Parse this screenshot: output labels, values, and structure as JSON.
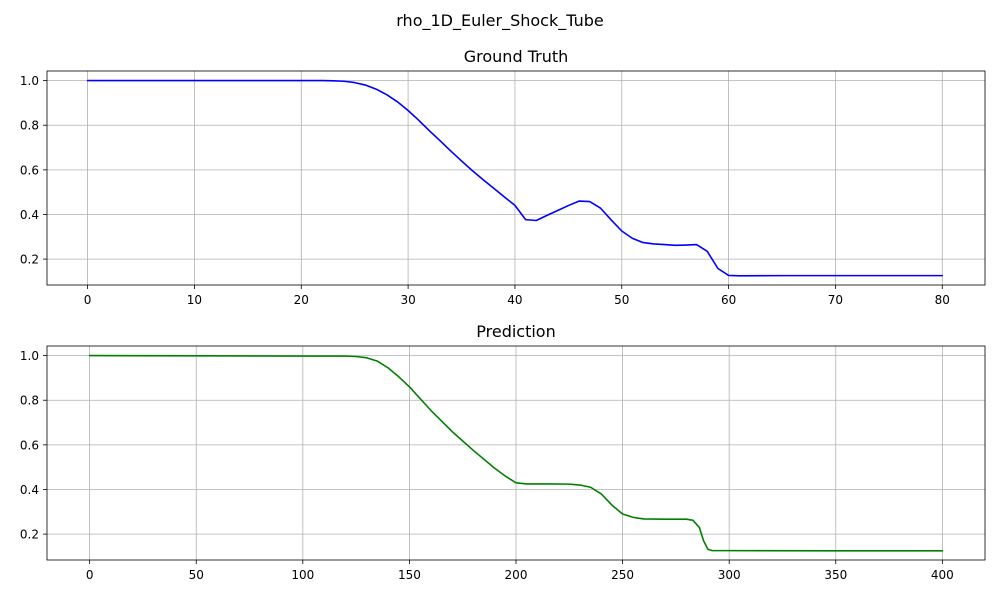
{
  "figure": {
    "title": "rho_1D_Euler_Shock_Tube"
  },
  "chart_data": [
    {
      "type": "line",
      "title": "Ground Truth",
      "xlabel": "",
      "ylabel": "",
      "xlim": [
        -3.8,
        84
      ],
      "ylim": [
        0.084,
        1.043
      ],
      "xticks": [
        0,
        10,
        20,
        30,
        40,
        50,
        60,
        70,
        80
      ],
      "yticks": [
        0.2,
        0.4,
        0.6,
        0.8,
        1.0
      ],
      "ytick_labels": [
        "0.2",
        "0.4",
        "0.6",
        "0.8",
        "1.0"
      ],
      "grid": true,
      "series": [
        {
          "color": "#0000ff",
          "x": [
            0,
            5,
            10,
            15,
            20,
            22,
            23,
            24,
            25,
            26,
            27,
            28,
            29,
            30,
            31,
            32,
            33,
            34,
            35,
            36,
            37,
            38,
            39,
            40,
            41,
            42,
            43,
            44,
            45,
            46,
            47,
            48,
            49,
            50,
            51,
            52,
            53,
            54,
            55,
            56,
            57,
            58,
            59,
            60,
            61,
            65,
            70,
            80
          ],
          "y": [
            1.0,
            1.0,
            1.0,
            1.0,
            1.0,
            1.0,
            0.999,
            0.997,
            0.991,
            0.98,
            0.962,
            0.937,
            0.905,
            0.866,
            0.822,
            0.775,
            0.73,
            0.684,
            0.64,
            0.597,
            0.557,
            0.518,
            0.479,
            0.441,
            0.377,
            0.373,
            0.396,
            0.418,
            0.44,
            0.46,
            0.458,
            0.429,
            0.376,
            0.326,
            0.293,
            0.274,
            0.268,
            0.265,
            0.262,
            0.263,
            0.265,
            0.235,
            0.158,
            0.127,
            0.125,
            0.126,
            0.126,
            0.126
          ]
        }
      ]
    },
    {
      "type": "line",
      "title": "Prediction",
      "xlabel": "",
      "ylabel": "",
      "xlim": [
        -20,
        420
      ],
      "ylim": [
        0.084,
        1.043
      ],
      "xticks": [
        0,
        50,
        100,
        150,
        200,
        250,
        300,
        350,
        400
      ],
      "yticks": [
        0.2,
        0.4,
        0.6,
        0.8,
        1.0
      ],
      "ytick_labels": [
        "0.2",
        "0.4",
        "0.6",
        "0.8",
        "1.0"
      ],
      "grid": true,
      "series": [
        {
          "color": "#008000",
          "x": [
            0,
            50,
            100,
            120,
            125,
            130,
            135,
            140,
            145,
            150,
            160,
            170,
            180,
            190,
            195,
            200,
            205,
            215,
            225,
            230,
            235,
            240,
            245,
            250,
            255,
            260,
            270,
            280,
            283,
            286,
            288,
            290,
            292,
            300,
            350,
            400
          ],
          "y": [
            1.0,
            0.999,
            0.998,
            0.998,
            0.996,
            0.99,
            0.975,
            0.945,
            0.905,
            0.86,
            0.755,
            0.66,
            0.575,
            0.495,
            0.46,
            0.43,
            0.425,
            0.425,
            0.424,
            0.42,
            0.41,
            0.38,
            0.33,
            0.29,
            0.275,
            0.268,
            0.267,
            0.267,
            0.262,
            0.23,
            0.17,
            0.132,
            0.126,
            0.126,
            0.125,
            0.125
          ]
        }
      ]
    }
  ]
}
